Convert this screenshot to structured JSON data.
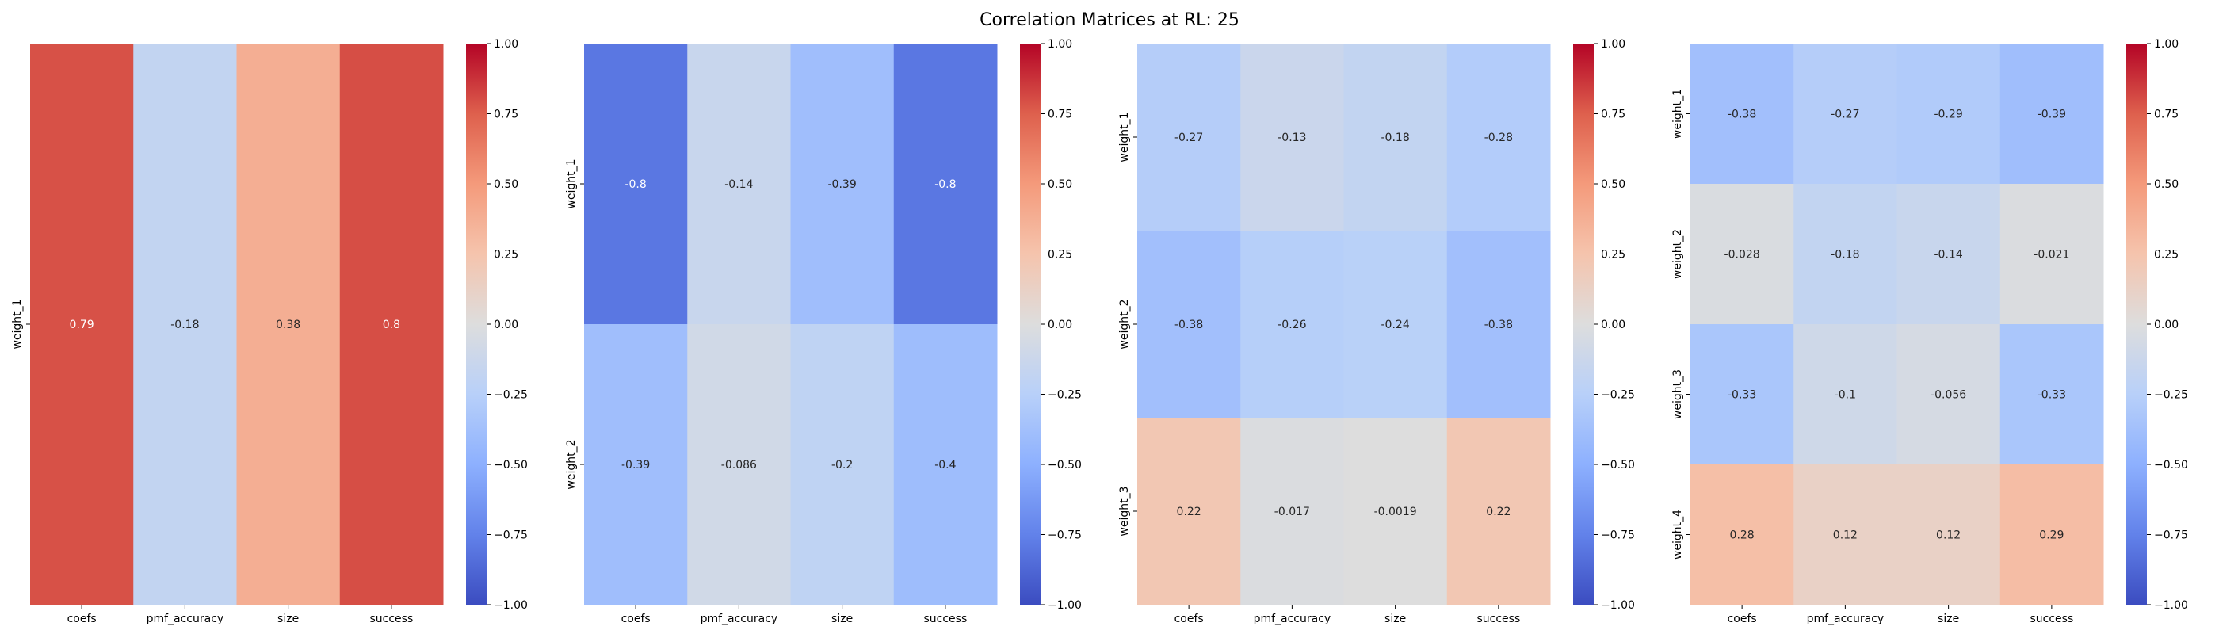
{
  "title": "Correlation Matrices at RL: 25",
  "colormap": {
    "name": "coolwarm",
    "min": -1,
    "max": 1,
    "ticks": [
      "1.00",
      "0.75",
      "0.50",
      "0.25",
      "0.00",
      "−0.25",
      "−0.50",
      "−0.75",
      "−1.00"
    ]
  },
  "chart_data": [
    {
      "type": "heatmap",
      "columns": [
        "coefs",
        "pmf_accuracy",
        "size",
        "success"
      ],
      "rows": [
        "weight_1"
      ],
      "values": [
        [
          0.79,
          -0.18,
          0.38,
          0.8
        ]
      ],
      "labels": [
        [
          "0.79",
          "-0.18",
          "0.38",
          "0.8"
        ]
      ],
      "vmin": -1,
      "vmax": 1
    },
    {
      "type": "heatmap",
      "columns": [
        "coefs",
        "pmf_accuracy",
        "size",
        "success"
      ],
      "rows": [
        "weight_1",
        "weight_2"
      ],
      "values": [
        [
          -0.8,
          -0.14,
          -0.39,
          -0.8
        ],
        [
          -0.39,
          -0.086,
          -0.2,
          -0.4
        ]
      ],
      "labels": [
        [
          "-0.8",
          "-0.14",
          "-0.39",
          "-0.8"
        ],
        [
          "-0.39",
          "-0.086",
          "-0.2",
          "-0.4"
        ]
      ],
      "vmin": -1,
      "vmax": 1
    },
    {
      "type": "heatmap",
      "columns": [
        "coefs",
        "pmf_accuracy",
        "size",
        "success"
      ],
      "rows": [
        "weight_1",
        "weight_2",
        "weight_3"
      ],
      "values": [
        [
          -0.27,
          -0.13,
          -0.18,
          -0.28
        ],
        [
          -0.38,
          -0.26,
          -0.24,
          -0.38
        ],
        [
          0.22,
          -0.017,
          -0.0019,
          0.22
        ]
      ],
      "labels": [
        [
          "-0.27",
          "-0.13",
          "-0.18",
          "-0.28"
        ],
        [
          "-0.38",
          "-0.26",
          "-0.24",
          "-0.38"
        ],
        [
          "0.22",
          "-0.017",
          "-0.0019",
          "0.22"
        ]
      ],
      "vmin": -1,
      "vmax": 1
    },
    {
      "type": "heatmap",
      "columns": [
        "coefs",
        "pmf_accuracy",
        "size",
        "success"
      ],
      "rows": [
        "weight_1",
        "weight_2",
        "weight_3",
        "weight_4"
      ],
      "values": [
        [
          -0.38,
          -0.27,
          -0.29,
          -0.39
        ],
        [
          -0.028,
          -0.18,
          -0.14,
          -0.021
        ],
        [
          -0.33,
          -0.1,
          -0.056,
          -0.33
        ],
        [
          0.28,
          0.12,
          0.12,
          0.29
        ]
      ],
      "labels": [
        [
          "-0.38",
          "-0.27",
          "-0.29",
          "-0.39"
        ],
        [
          "-0.028",
          "-0.18",
          "-0.14",
          "-0.021"
        ],
        [
          "-0.33",
          "-0.1",
          "-0.056",
          "-0.33"
        ],
        [
          "0.28",
          "0.12",
          "0.12",
          "0.29"
        ]
      ],
      "vmin": -1,
      "vmax": 1
    }
  ]
}
